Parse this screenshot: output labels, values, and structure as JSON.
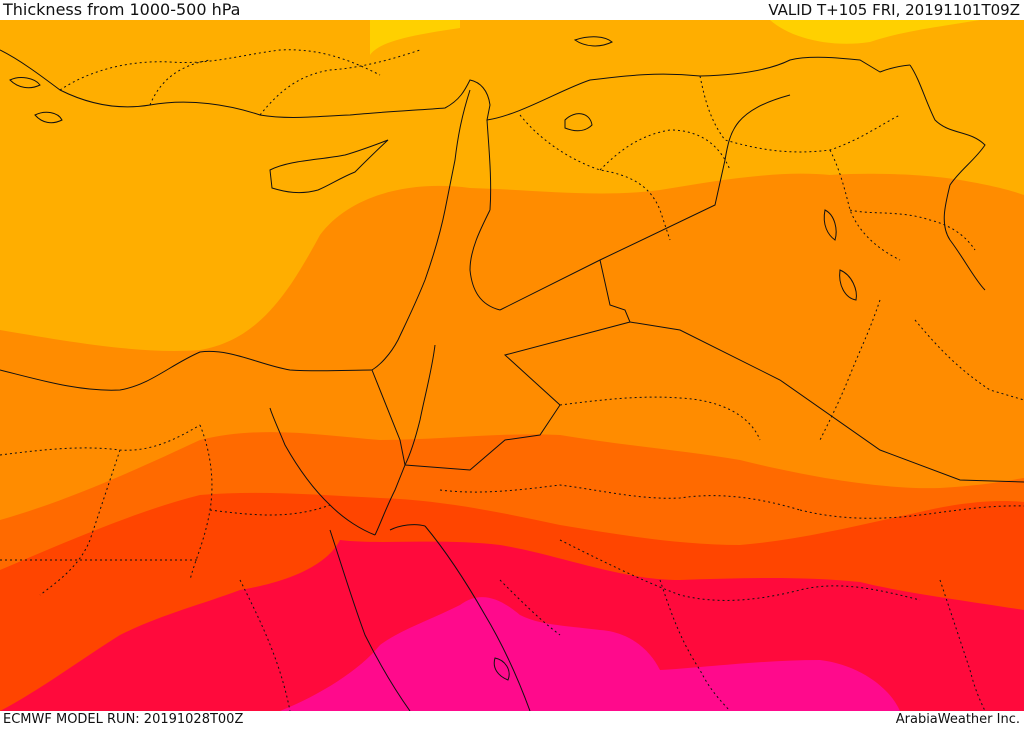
{
  "header": {
    "title": "Thickness from 1000-500 hPa",
    "valid": "VALID T+105 FRI, 20191101T09Z"
  },
  "footer": {
    "model_run": "ECMWF MODEL RUN: 20191028T00Z",
    "credit": "ArabiaWeather Inc."
  },
  "colors": {
    "band_1": "#FFAE00",
    "band_2": "#FF8C00",
    "band_3": "#FF6A00",
    "band_4": "#FF4500",
    "band_5": "#FF0A3C",
    "band_6": "#FF0A8C",
    "highlight": "#FFD000",
    "border": "#111111"
  }
}
